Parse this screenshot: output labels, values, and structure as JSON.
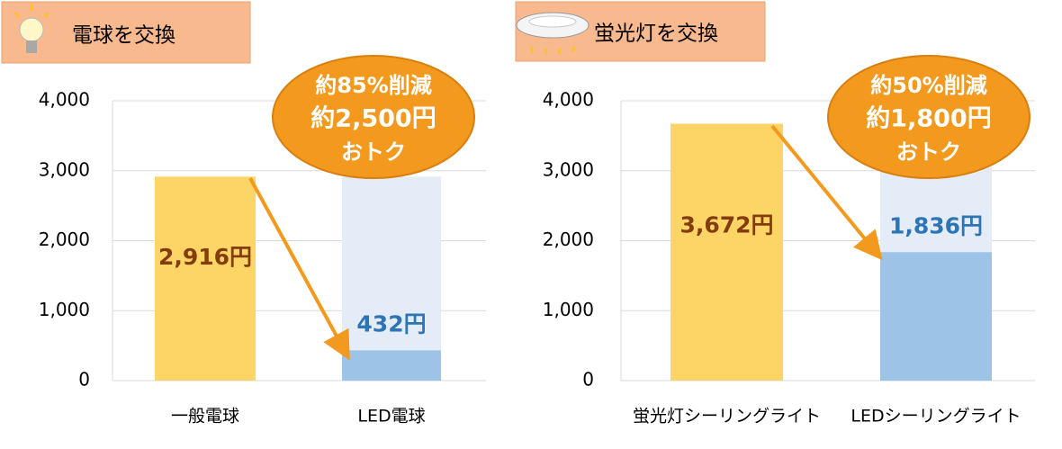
{
  "chart_data": [
    {
      "type": "bar",
      "title": "電球を交換",
      "categories": [
        "一般電球",
        "LED電球"
      ],
      "values": [
        2916,
        432
      ],
      "value_labels": [
        "2,916円",
        "432円"
      ],
      "colors": [
        "#fdd567",
        "#9dc3e6"
      ],
      "label_colors": [
        "#843c0c",
        "#2e75b6"
      ],
      "ylim": [
        0,
        4000
      ],
      "yticks": [
        0,
        {
          "value": 1000,
          "label": "1,000"
        },
        {
          "value": 2000,
          "label": "2,000"
        },
        {
          "value": 3000,
          "label": "3,000"
        },
        {
          "value": 4000,
          "label": "4,000"
        }
      ],
      "grid": true,
      "annotation": [
        "約85%削減",
        "約2,500円",
        "おトク"
      ]
    },
    {
      "type": "bar",
      "title": "蛍光灯を交換",
      "categories": [
        "蛍光灯シーリングライト",
        "LEDシーリングライト"
      ],
      "values": [
        3672,
        1836
      ],
      "value_labels": [
        "3,672円",
        "1,836円"
      ],
      "colors": [
        "#fdd567",
        "#9dc3e6"
      ],
      "label_colors": [
        "#843c0c",
        "#2e75b6"
      ],
      "ylim": [
        0,
        4000
      ],
      "yticks": [
        0,
        {
          "value": 1000,
          "label": "1,000"
        },
        {
          "value": 2000,
          "label": "2,000"
        },
        {
          "value": 3000,
          "label": "3,000"
        },
        {
          "value": 4000,
          "label": "4,000"
        }
      ],
      "grid": true,
      "annotation": [
        "約50%削減",
        "約1,800円",
        "おトク"
      ]
    }
  ]
}
